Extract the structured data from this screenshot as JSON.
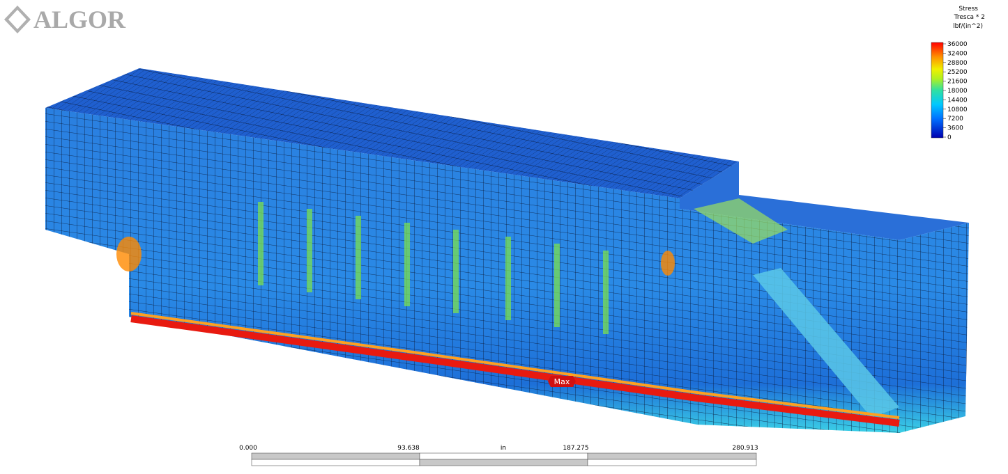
{
  "logo": "ALGOR",
  "legend": {
    "title": "Stress",
    "subtitle": "Tresca * 2",
    "units": "lbf/(in^2)",
    "ticks": [
      36000,
      32400,
      28800,
      25200,
      21600,
      18000,
      14400,
      10800,
      7200,
      3600,
      0
    ]
  },
  "max_label": "Max",
  "scale_bar": {
    "labels": [
      "0.000",
      "93.638",
      "187.275",
      "280.913"
    ],
    "unit": "in"
  }
}
